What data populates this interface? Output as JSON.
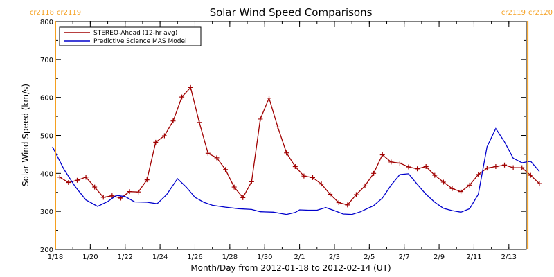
{
  "chart_data": {
    "type": "line",
    "title": "Solar Wind Speed Comparisons",
    "xlabel": "Month/Day from 2012-01-18 to 2012-02-14 (UT)",
    "ylabel": "Solar Wind Speed (km/s)",
    "ylim": [
      200,
      800
    ],
    "yticks": [
      200,
      300,
      400,
      500,
      600,
      700,
      800
    ],
    "xlim": [
      "2012-01-18",
      "2012-02-14"
    ],
    "xticks": [
      {
        "date": "2012-01-18",
        "label": "1/18"
      },
      {
        "date": "2012-01-20",
        "label": "1/20"
      },
      {
        "date": "2012-01-22",
        "label": "1/22"
      },
      {
        "date": "2012-01-24",
        "label": "1/24"
      },
      {
        "date": "2012-01-26",
        "label": "1/26"
      },
      {
        "date": "2012-01-28",
        "label": "1/28"
      },
      {
        "date": "2012-01-30",
        "label": "1/30"
      },
      {
        "date": "2012-02-01",
        "label": "2/1"
      },
      {
        "date": "2012-02-03",
        "label": "2/3"
      },
      {
        "date": "2012-02-05",
        "label": "2/5"
      },
      {
        "date": "2012-02-07",
        "label": "2/7"
      },
      {
        "date": "2012-02-09",
        "label": "2/9"
      },
      {
        "date": "2012-02-11",
        "label": "2/11"
      },
      {
        "date": "2012-02-13",
        "label": "2/13"
      }
    ],
    "rotations": [
      {
        "date": "2012-01-18 00:00",
        "left": "cr2118",
        "right": "cr2119"
      },
      {
        "date": "2012-02-14 02:00",
        "left": "cr2119",
        "right": "cr2120"
      }
    ],
    "rotation_color": "#f5a020",
    "legend": "top-left",
    "series": [
      {
        "name": "STEREO-Ahead (12-hr avg)",
        "color": "#a00000",
        "marker": "+",
        "points": [
          [
            "2012-01-18 06:00",
            390
          ],
          [
            "2012-01-18 18:00",
            376
          ],
          [
            "2012-01-19 06:00",
            382
          ],
          [
            "2012-01-19 18:00",
            390
          ],
          [
            "2012-01-20 06:00",
            364
          ],
          [
            "2012-01-20 18:00",
            337
          ],
          [
            "2012-01-21 06:00",
            341
          ],
          [
            "2012-01-21 18:00",
            335
          ],
          [
            "2012-01-22 06:00",
            352
          ],
          [
            "2012-01-22 18:00",
            351
          ],
          [
            "2012-01-23 06:00",
            383
          ],
          [
            "2012-01-23 18:00",
            482
          ],
          [
            "2012-01-24 06:00",
            499
          ],
          [
            "2012-01-24 18:00",
            538
          ],
          [
            "2012-01-25 06:00",
            601
          ],
          [
            "2012-01-25 18:00",
            626
          ],
          [
            "2012-01-26 06:00",
            534
          ],
          [
            "2012-01-26 18:00",
            453
          ],
          [
            "2012-01-27 06:00",
            441
          ],
          [
            "2012-01-27 18:00",
            410
          ],
          [
            "2012-01-28 06:00",
            364
          ],
          [
            "2012-01-28 18:00",
            336
          ],
          [
            "2012-01-29 06:00",
            378
          ],
          [
            "2012-01-29 18:00",
            543
          ],
          [
            "2012-01-30 06:00",
            598
          ],
          [
            "2012-01-30 18:00",
            522
          ],
          [
            "2012-01-31 06:00",
            454
          ],
          [
            "2012-01-31 18:00",
            418
          ],
          [
            "2012-02-01 06:00",
            393
          ],
          [
            "2012-02-01 18:00",
            389
          ],
          [
            "2012-02-02 06:00",
            372
          ],
          [
            "2012-02-02 18:00",
            345
          ],
          [
            "2012-02-03 06:00",
            323
          ],
          [
            "2012-02-03 18:00",
            317
          ],
          [
            "2012-02-04 06:00",
            344
          ],
          [
            "2012-02-04 18:00",
            367
          ],
          [
            "2012-02-05 06:00",
            400
          ],
          [
            "2012-02-05 18:00",
            449
          ],
          [
            "2012-02-06 06:00",
            430
          ],
          [
            "2012-02-06 18:00",
            427
          ],
          [
            "2012-02-07 06:00",
            417
          ],
          [
            "2012-02-07 18:00",
            412
          ],
          [
            "2012-02-08 06:00",
            418
          ],
          [
            "2012-02-08 18:00",
            395
          ],
          [
            "2012-02-09 06:00",
            377
          ],
          [
            "2012-02-09 18:00",
            360
          ],
          [
            "2012-02-10 06:00",
            352
          ],
          [
            "2012-02-10 18:00",
            369
          ],
          [
            "2012-02-11 06:00",
            397
          ],
          [
            "2012-02-11 18:00",
            414
          ],
          [
            "2012-02-12 06:00",
            418
          ],
          [
            "2012-02-12 18:00",
            422
          ],
          [
            "2012-02-13 06:00",
            415
          ],
          [
            "2012-02-13 18:00",
            415
          ],
          [
            "2012-02-14 06:00",
            395
          ],
          [
            "2012-02-14 18:00",
            373
          ]
        ]
      },
      {
        "name": "Predictive Science MAS Model",
        "color": "#0000cc",
        "marker": "none",
        "points": [
          [
            "2012-01-17 20:00",
            470
          ],
          [
            "2012-01-18 12:00",
            410
          ],
          [
            "2012-01-19 03:00",
            366
          ],
          [
            "2012-01-19 18:00",
            330
          ],
          [
            "2012-01-20 10:00",
            313
          ],
          [
            "2012-01-21 00:00",
            326
          ],
          [
            "2012-01-21 12:00",
            342
          ],
          [
            "2012-01-22 00:00",
            339
          ],
          [
            "2012-01-22 13:00",
            325
          ],
          [
            "2012-01-23 06:00",
            324
          ],
          [
            "2012-01-23 20:00",
            320
          ],
          [
            "2012-01-24 09:00",
            344
          ],
          [
            "2012-01-25 00:00",
            386
          ],
          [
            "2012-01-25 12:00",
            364
          ],
          [
            "2012-01-26 00:00",
            337
          ],
          [
            "2012-01-26 12:00",
            324
          ],
          [
            "2012-01-27 00:00",
            316
          ],
          [
            "2012-01-27 18:00",
            311
          ],
          [
            "2012-01-28 12:00",
            307
          ],
          [
            "2012-01-29 06:00",
            305
          ],
          [
            "2012-01-29 18:00",
            299
          ],
          [
            "2012-01-30 12:00",
            298
          ],
          [
            "2012-01-31 06:00",
            292
          ],
          [
            "2012-01-31 18:00",
            297
          ],
          [
            "2012-02-01 00:00",
            304
          ],
          [
            "2012-02-01 12:00",
            303
          ],
          [
            "2012-02-02 00:00",
            303
          ],
          [
            "2012-02-02 12:00",
            310
          ],
          [
            "2012-02-03 00:00",
            302
          ],
          [
            "2012-02-03 12:00",
            293
          ],
          [
            "2012-02-04 00:00",
            292
          ],
          [
            "2012-02-04 12:00",
            299
          ],
          [
            "2012-02-05 06:00",
            315
          ],
          [
            "2012-02-05 18:00",
            335
          ],
          [
            "2012-02-06 06:00",
            369
          ],
          [
            "2012-02-06 18:00",
            397
          ],
          [
            "2012-02-07 06:00",
            399
          ],
          [
            "2012-02-07 18:00",
            371
          ],
          [
            "2012-02-08 06:00",
            345
          ],
          [
            "2012-02-08 18:00",
            324
          ],
          [
            "2012-02-09 06:00",
            308
          ],
          [
            "2012-02-09 18:00",
            302
          ],
          [
            "2012-02-10 06:00",
            298
          ],
          [
            "2012-02-10 18:00",
            307
          ],
          [
            "2012-02-11 06:00",
            345
          ],
          [
            "2012-02-11 18:00",
            470
          ],
          [
            "2012-02-12 06:00",
            518
          ],
          [
            "2012-02-12 18:00",
            483
          ],
          [
            "2012-02-13 06:00",
            440
          ],
          [
            "2012-02-13 18:00",
            428
          ],
          [
            "2012-02-14 06:00",
            432
          ],
          [
            "2012-02-14 18:00",
            405
          ]
        ]
      }
    ]
  }
}
